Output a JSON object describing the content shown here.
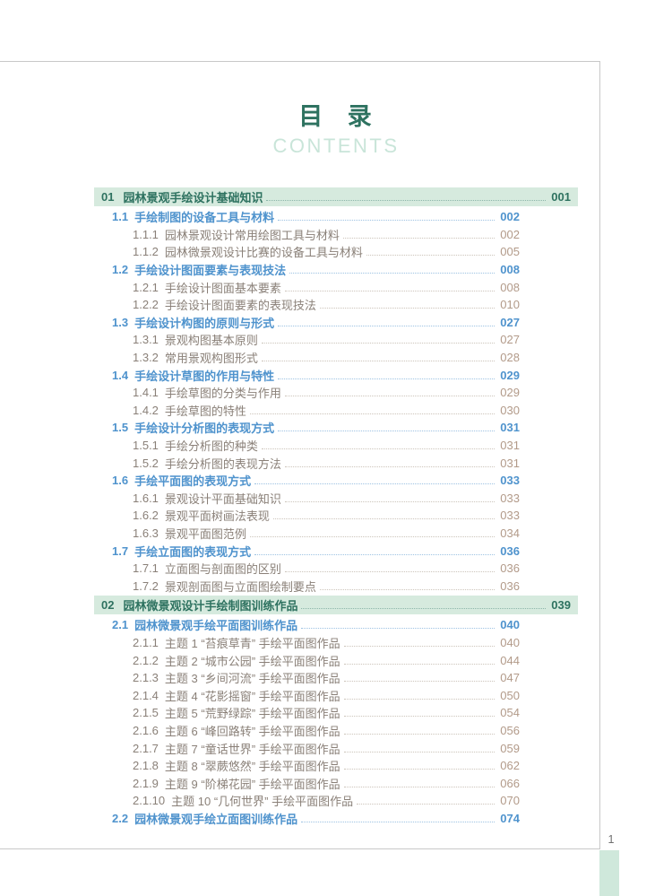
{
  "page": {
    "title_cn": "目 录",
    "title_en": "CONTENTS",
    "footer_page_number": "1"
  },
  "colors": {
    "accent_teal": "#2e7260",
    "chapter_bar_bg": "#d6eade",
    "section_blue": "#4f93cd",
    "subsection_text": "#8a8078",
    "subsection_page": "#b29a89",
    "contents_mint": "#c9e5d9",
    "corner_tab_green": "#cfe8db"
  },
  "toc": [
    {
      "type": "chapter",
      "num": "01",
      "title": "园林景观手绘设计基础知识",
      "page": "001"
    },
    {
      "type": "section",
      "num": "1.1",
      "title": "手绘制图的设备工具与材料",
      "page": "002"
    },
    {
      "type": "subsection",
      "num": "1.1.1",
      "title": "园林景观设计常用绘图工具与材料",
      "page": "002"
    },
    {
      "type": "subsection",
      "num": "1.1.2",
      "title": "园林微景观设计比赛的设备工具与材料",
      "page": "005"
    },
    {
      "type": "section",
      "num": "1.2",
      "title": "手绘设计图面要素与表现技法",
      "page": "008"
    },
    {
      "type": "subsection",
      "num": "1.2.1",
      "title": "手绘设计图面基本要素",
      "page": "008"
    },
    {
      "type": "subsection",
      "num": "1.2.2",
      "title": "手绘设计图面要素的表现技法",
      "page": "010"
    },
    {
      "type": "section",
      "num": "1.3",
      "title": "手绘设计构图的原则与形式",
      "page": "027"
    },
    {
      "type": "subsection",
      "num": "1.3.1",
      "title": "景观构图基本原则",
      "page": "027"
    },
    {
      "type": "subsection",
      "num": "1.3.2",
      "title": "常用景观构图形式",
      "page": "028"
    },
    {
      "type": "section",
      "num": "1.4",
      "title": "手绘设计草图的作用与特性",
      "page": "029"
    },
    {
      "type": "subsection",
      "num": "1.4.1",
      "title": "手绘草图的分类与作用",
      "page": "029"
    },
    {
      "type": "subsection",
      "num": "1.4.2",
      "title": "手绘草图的特性",
      "page": "030"
    },
    {
      "type": "section",
      "num": "1.5",
      "title": "手绘设计分析图的表现方式",
      "page": "031"
    },
    {
      "type": "subsection",
      "num": "1.5.1",
      "title": "手绘分析图的种类",
      "page": "031"
    },
    {
      "type": "subsection",
      "num": "1.5.2",
      "title": "手绘分析图的表现方法",
      "page": "031"
    },
    {
      "type": "section",
      "num": "1.6",
      "title": "手绘平面图的表现方式",
      "page": "033"
    },
    {
      "type": "subsection",
      "num": "1.6.1",
      "title": "景观设计平面基础知识",
      "page": "033"
    },
    {
      "type": "subsection",
      "num": "1.6.2",
      "title": "景观平面树画法表现",
      "page": "033"
    },
    {
      "type": "subsection",
      "num": "1.6.3",
      "title": "景观平面图范例",
      "page": "034"
    },
    {
      "type": "section",
      "num": "1.7",
      "title": "手绘立面图的表现方式",
      "page": "036"
    },
    {
      "type": "subsection",
      "num": "1.7.1",
      "title": "立面图与剖面图的区别",
      "page": "036"
    },
    {
      "type": "subsection",
      "num": "1.7.2",
      "title": "景观剖面图与立面图绘制要点",
      "page": "036"
    },
    {
      "type": "chapter",
      "num": "02",
      "title": "园林微景观设计手绘制图训练作品",
      "page": "039"
    },
    {
      "type": "section",
      "num": "2.1",
      "title": "园林微景观手绘平面图训练作品",
      "page": "040"
    },
    {
      "type": "subsection",
      "num": "2.1.1",
      "title": "主题 1 “苔痕草青” 手绘平面图作品",
      "page": "040"
    },
    {
      "type": "subsection",
      "num": "2.1.2",
      "title": "主题 2 “城市公园” 手绘平面图作品",
      "page": "044"
    },
    {
      "type": "subsection",
      "num": "2.1.3",
      "title": "主题 3 “乡间河流” 手绘平面图作品",
      "page": "047"
    },
    {
      "type": "subsection",
      "num": "2.1.4",
      "title": "主题 4 “花影摇窗” 手绘平面图作品",
      "page": "050"
    },
    {
      "type": "subsection",
      "num": "2.1.5",
      "title": "主题 5 “荒野绿踪” 手绘平面图作品",
      "page": "054"
    },
    {
      "type": "subsection",
      "num": "2.1.6",
      "title": "主题 6 “峰回路转” 手绘平面图作品",
      "page": "056"
    },
    {
      "type": "subsection",
      "num": "2.1.7",
      "title": "主题 7 “童话世界” 手绘平面图作品",
      "page": "059"
    },
    {
      "type": "subsection",
      "num": "2.1.8",
      "title": "主题 8 “翠蕨悠然” 手绘平面图作品",
      "page": "062"
    },
    {
      "type": "subsection",
      "num": "2.1.9",
      "title": "主题 9 “阶梯花园” 手绘平面图作品",
      "page": "066"
    },
    {
      "type": "subsection",
      "num": "2.1.10",
      "title": "主题 10 “几何世界” 手绘平面图作品",
      "page": "070"
    },
    {
      "type": "section",
      "num": "2.2",
      "title": "园林微景观手绘立面图训练作品",
      "page": "074"
    }
  ]
}
